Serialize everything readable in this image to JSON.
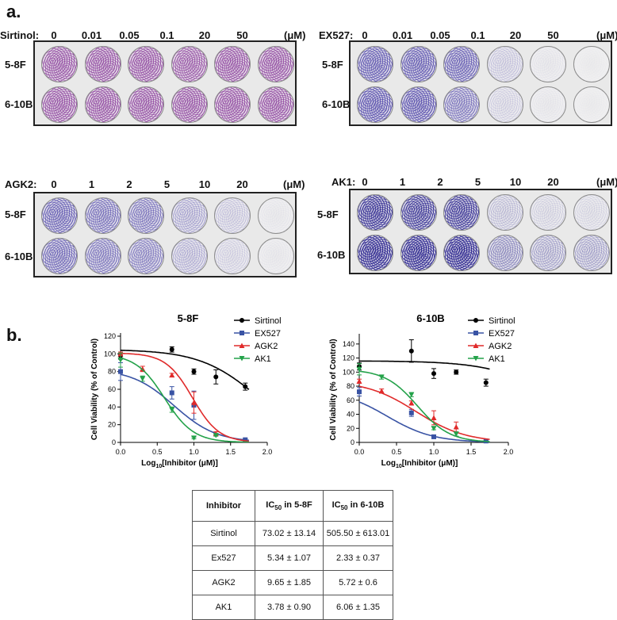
{
  "figure": {
    "panel_a": "a.",
    "panel_b": "b."
  },
  "plates": [
    {
      "id": "sirtinol",
      "agent_label": "Sirtinol:",
      "doses": [
        "0",
        "0.01",
        "0.05",
        "0.1",
        "20",
        "50"
      ],
      "unit": "(μM)",
      "rows": [
        "5-8F",
        "6-10B"
      ],
      "stain": [
        [
          0.85,
          0.85,
          0.85,
          0.8,
          0.85,
          0.85
        ],
        [
          0.85,
          0.85,
          0.85,
          0.85,
          0.85,
          0.85
        ]
      ],
      "hue": "#8a3c9c"
    },
    {
      "id": "ex527",
      "agent_label": "EX527:",
      "doses": [
        "0",
        "0.01",
        "0.05",
        "0.1",
        "20",
        "50"
      ],
      "unit": "(μM)",
      "rows": [
        "5-8F",
        "6-10B"
      ],
      "stain": [
        [
          0.8,
          0.8,
          0.75,
          0.2,
          0.05,
          0.02
        ],
        [
          0.85,
          0.85,
          0.6,
          0.15,
          0.04,
          0.02
        ]
      ],
      "hue": "#4a3fa8"
    },
    {
      "id": "agk2",
      "agent_label": "AGK2:",
      "doses": [
        "0",
        "1",
        "2",
        "5",
        "10",
        "20"
      ],
      "unit": "(μM)",
      "rows": [
        "5-8F",
        "6-10B"
      ],
      "stain": [
        [
          0.75,
          0.65,
          0.6,
          0.35,
          0.2,
          0.04
        ],
        [
          0.7,
          0.6,
          0.55,
          0.3,
          0.15,
          0.04
        ]
      ],
      "hue": "#4a3fa8"
    },
    {
      "id": "ak1",
      "agent_label": "AK1:",
      "doses": [
        "0",
        "1",
        "2",
        "5",
        "10",
        "20"
      ],
      "unit": "(μM)",
      "rows": [
        "5-8F",
        "6-10B"
      ],
      "stain": [
        [
          0.9,
          0.85,
          0.85,
          0.2,
          0.12,
          0.1
        ],
        [
          1.0,
          1.0,
          1.0,
          0.4,
          0.3,
          0.3
        ]
      ],
      "hue": "#27208e"
    }
  ],
  "chart_data": [
    {
      "type": "line",
      "title": "5-8F",
      "xlabel_prefix": "Log",
      "xlabel_sub": "10",
      "xlabel_suffix": "[Inhibitor (μM)]",
      "ylabel": "Cell Viability (% of Control)",
      "xlim": [
        0,
        2
      ],
      "ylim": [
        0,
        120
      ],
      "xticks": [
        "0.0",
        "0.5",
        "1.0",
        "1.5",
        "2.0"
      ],
      "yticks": [
        "0",
        "20",
        "40",
        "60",
        "80",
        "100",
        "120"
      ],
      "series": [
        {
          "name": "Sirtinol",
          "color": "#000000",
          "marker": "circle",
          "x": [
            0,
            0.7,
            1.0,
            1.3,
            1.7
          ],
          "y": [
            98,
            105,
            80,
            74,
            63
          ],
          "err": [
            4,
            3,
            3,
            8,
            4
          ],
          "fit": {
            "top": 105,
            "bottom": 0,
            "ic50": 1.86,
            "hill": 1.1
          }
        },
        {
          "name": "EX527",
          "color": "#3953a4",
          "marker": "square",
          "x": [
            0,
            0.7,
            1.0,
            1.7
          ],
          "y": [
            80,
            56,
            42,
            3
          ],
          "err": [
            10,
            7,
            16,
            1
          ],
          "fit": {
            "top": 83,
            "bottom": 0,
            "ic50": 0.73,
            "hill": 1.5
          }
        },
        {
          "name": "AGK2",
          "color": "#e02a2a",
          "marker": "triangle-up",
          "x": [
            0,
            0.3,
            0.7,
            1.0,
            1.3
          ],
          "y": [
            100,
            83,
            76,
            45,
            10
          ],
          "err": [
            2,
            3,
            2,
            12,
            2
          ],
          "fit": {
            "top": 101,
            "bottom": 0,
            "ic50": 0.98,
            "hill": 2.4
          }
        },
        {
          "name": "AK1",
          "color": "#24a24a",
          "marker": "triangle-down",
          "x": [
            0,
            0.3,
            0.7,
            1.0,
            1.3
          ],
          "y": [
            93,
            72,
            37,
            5,
            8
          ],
          "err": [
            8,
            3,
            3,
            1,
            1
          ],
          "fit": {
            "top": 100,
            "bottom": 0,
            "ic50": 0.6,
            "hill": 2.2
          }
        }
      ]
    },
    {
      "type": "line",
      "title": "6-10B",
      "xlabel_prefix": "Log",
      "xlabel_sub": "10",
      "xlabel_suffix": "[Inhibitor (μM)]",
      "ylabel": "Cell Viability (% of Control)",
      "xlim": [
        0,
        2
      ],
      "ylim": [
        0,
        150
      ],
      "xticks": [
        "0.0",
        "0.5",
        "1.0",
        "1.5",
        "2.0"
      ],
      "yticks": [
        "0",
        "20",
        "40",
        "60",
        "80",
        "100",
        "120",
        "140"
      ],
      "series": [
        {
          "name": "Sirtinol",
          "color": "#000000",
          "marker": "circle",
          "x": [
            0,
            0.7,
            1.0,
            1.3,
            1.7
          ],
          "y": [
            108,
            130,
            98,
            100,
            85
          ],
          "err": [
            5,
            16,
            7,
            3,
            5
          ],
          "fit": {
            "top": 116,
            "bottom": 0,
            "ic50": 2.7,
            "hill": 1.0
          }
        },
        {
          "name": "EX527",
          "color": "#3953a4",
          "marker": "square",
          "x": [
            0,
            0.7,
            1.0,
            1.7
          ],
          "y": [
            72,
            42,
            8,
            2
          ],
          "err": [
            6,
            5,
            1,
            1
          ],
          "fit": {
            "top": 75,
            "bottom": 0,
            "ic50": 0.37,
            "hill": 1.4
          }
        },
        {
          "name": "AGK2",
          "color": "#e02a2a",
          "marker": "triangle-up",
          "x": [
            0,
            0.3,
            0.7,
            1.0,
            1.3
          ],
          "y": [
            87,
            73,
            56,
            35,
            22
          ],
          "err": [
            3,
            3,
            3,
            10,
            7
          ],
          "fit": {
            "top": 88,
            "bottom": 0,
            "ic50": 0.76,
            "hill": 1.3
          }
        },
        {
          "name": "AK1",
          "color": "#24a24a",
          "marker": "triangle-down",
          "x": [
            0,
            0.3,
            0.7,
            1.0,
            1.3
          ],
          "y": [
            104,
            93,
            68,
            20,
            12
          ],
          "err": [
            8,
            3,
            3,
            2,
            3
          ],
          "fit": {
            "top": 104,
            "bottom": 0,
            "ic50": 0.78,
            "hill": 2.0
          }
        }
      ]
    }
  ],
  "ic50_table": {
    "headers": {
      "inhibitor": "Inhibitor",
      "c1_main": "IC",
      "c1_sub": "50",
      "c1_suffix": " in 5-8F",
      "c2_main": "IC",
      "c2_sub": "50",
      "c2_suffix": " in 6-10B"
    },
    "rows": [
      {
        "name": "Sirtinol",
        "v58f": "73.02 ± 13.14",
        "v610b": "505.50 ± 613.01"
      },
      {
        "name": "Ex527",
        "v58f": "5.34 ± 1.07",
        "v610b": "2.33 ± 0.37"
      },
      {
        "name": "AGK2",
        "v58f": "9.65 ± 1.85",
        "v610b": "5.72 ± 0.6"
      },
      {
        "name": "AK1",
        "v58f": "3.78 ± 0.90",
        "v610b": "6.06 ± 1.35"
      }
    ]
  }
}
